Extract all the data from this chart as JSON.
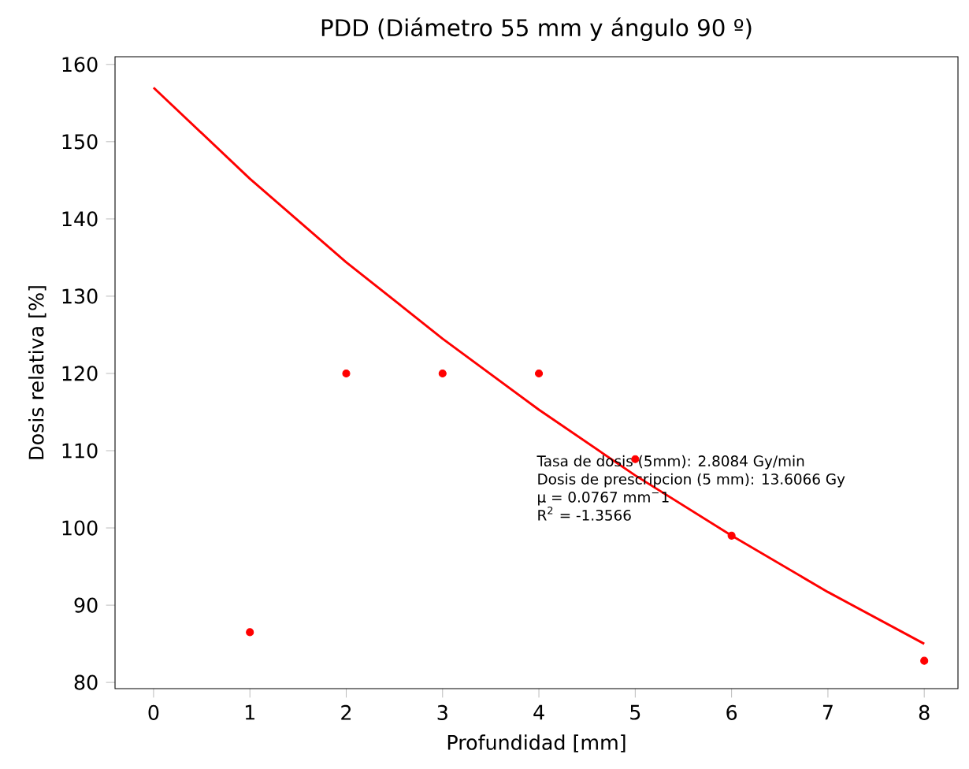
{
  "chart_data": {
    "type": "scatter",
    "title": "PDD (Diámetro 55 mm y ángulo 90 º)",
    "xlabel": "Profundidad  [mm]",
    "ylabel": "Dosis relativa  [%]",
    "xlim": [
      -0.4,
      8.35
    ],
    "ylim": [
      79.2,
      161
    ],
    "xticks": [
      0,
      1,
      2,
      3,
      4,
      5,
      6,
      7,
      8
    ],
    "yticks": [
      80,
      90,
      100,
      110,
      120,
      130,
      140,
      150,
      160
    ],
    "grid": false,
    "series": [
      {
        "color": "#ff0000",
        "marker": "circle",
        "x": [
          1,
          2,
          3,
          4,
          5,
          6,
          8
        ],
        "values": [
          86.5,
          120,
          120,
          120,
          108.9,
          99,
          82.8
        ]
      },
      {
        "type": "line",
        "color": "#ff0000",
        "marker": "none",
        "line_style": "solid",
        "x": [
          0,
          1,
          2,
          3,
          4,
          5,
          6,
          7,
          8
        ],
        "values": [
          157,
          145.2,
          134.4,
          124.5,
          115.3,
          106.8,
          99,
          91.7,
          85
        ]
      }
    ],
    "annotations": [
      "Tasa de dosis (5mm): 2.8084 Gy/min",
      "Dosis de prescripcion (5 mm): 13.6066 Gy",
      "μ = 0.0767 mm$^{−}$1",
      "R$^{2}$ = -1.3566"
    ]
  }
}
